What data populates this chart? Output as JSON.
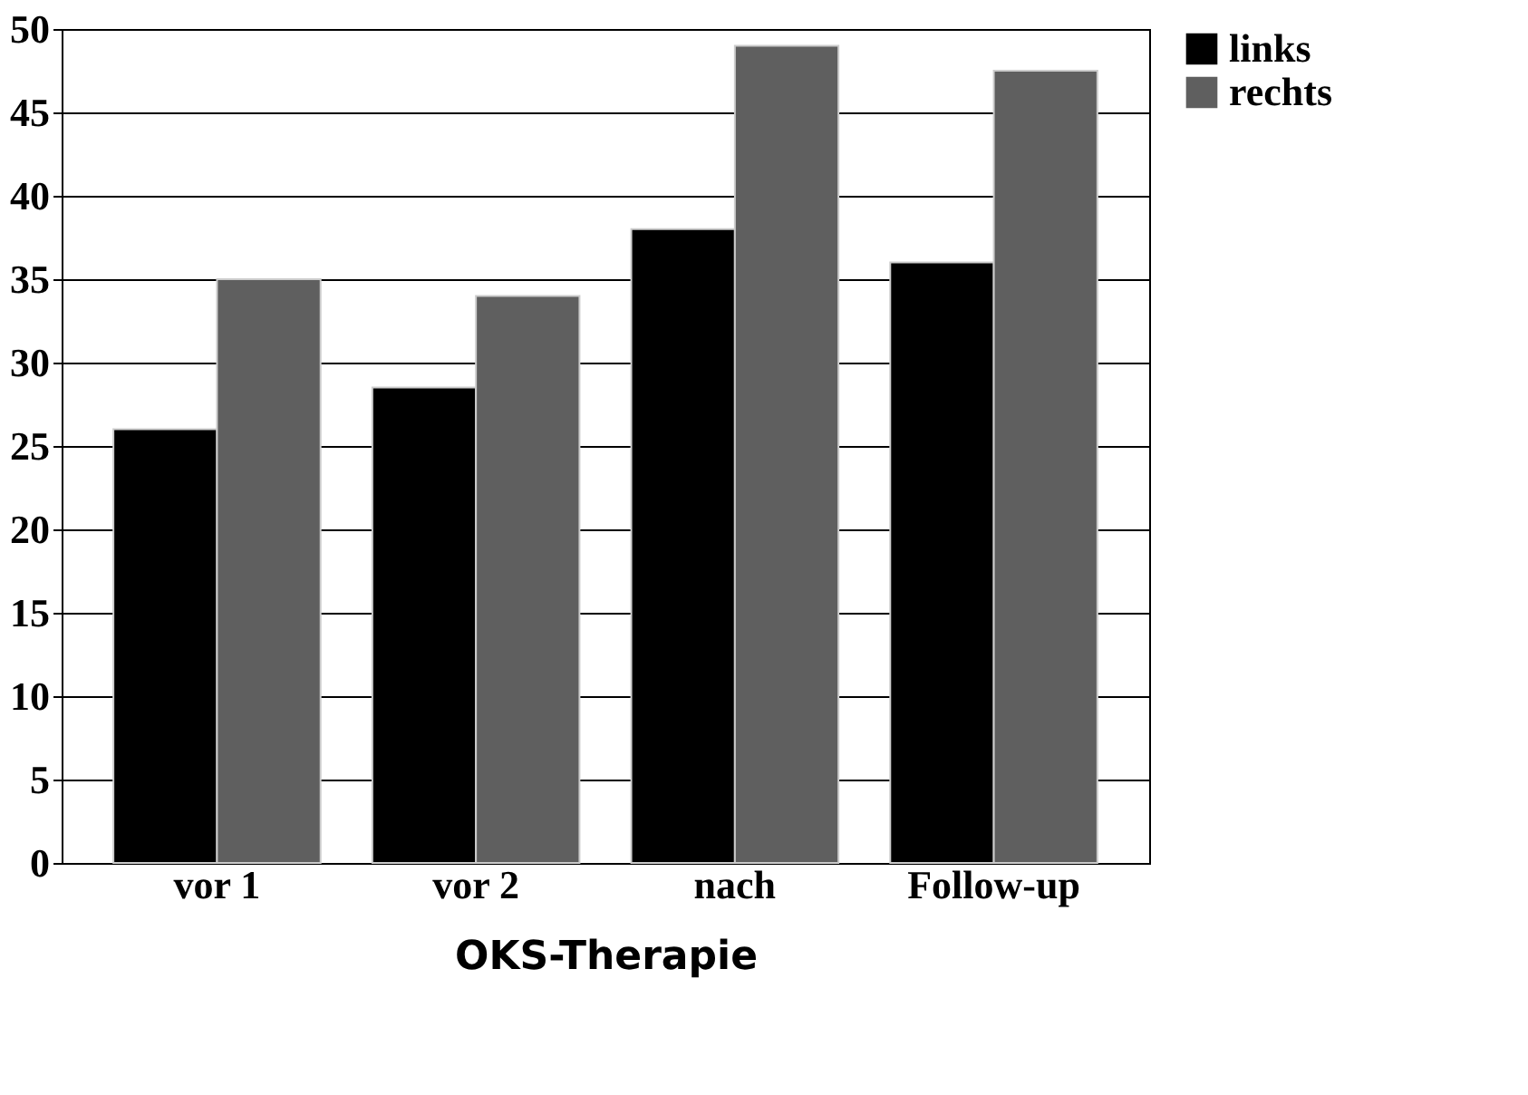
{
  "chart_data": {
    "type": "bar",
    "xlabel": "OKS-Therapie",
    "categories": [
      "vor 1",
      "vor 2",
      "nach",
      "Follow-up"
    ],
    "series": [
      {
        "name": "links",
        "color": "#000000",
        "values": [
          26,
          28.5,
          38,
          36
        ]
      },
      {
        "name": "rechts",
        "color": "#5f5f5f",
        "values": [
          35,
          34,
          49,
          47.5
        ]
      }
    ],
    "ylim": [
      0,
      50
    ],
    "yticks": [
      0,
      5,
      10,
      15,
      20,
      25,
      30,
      35,
      40,
      45,
      50
    ],
    "grid": "y",
    "legend": "right"
  }
}
